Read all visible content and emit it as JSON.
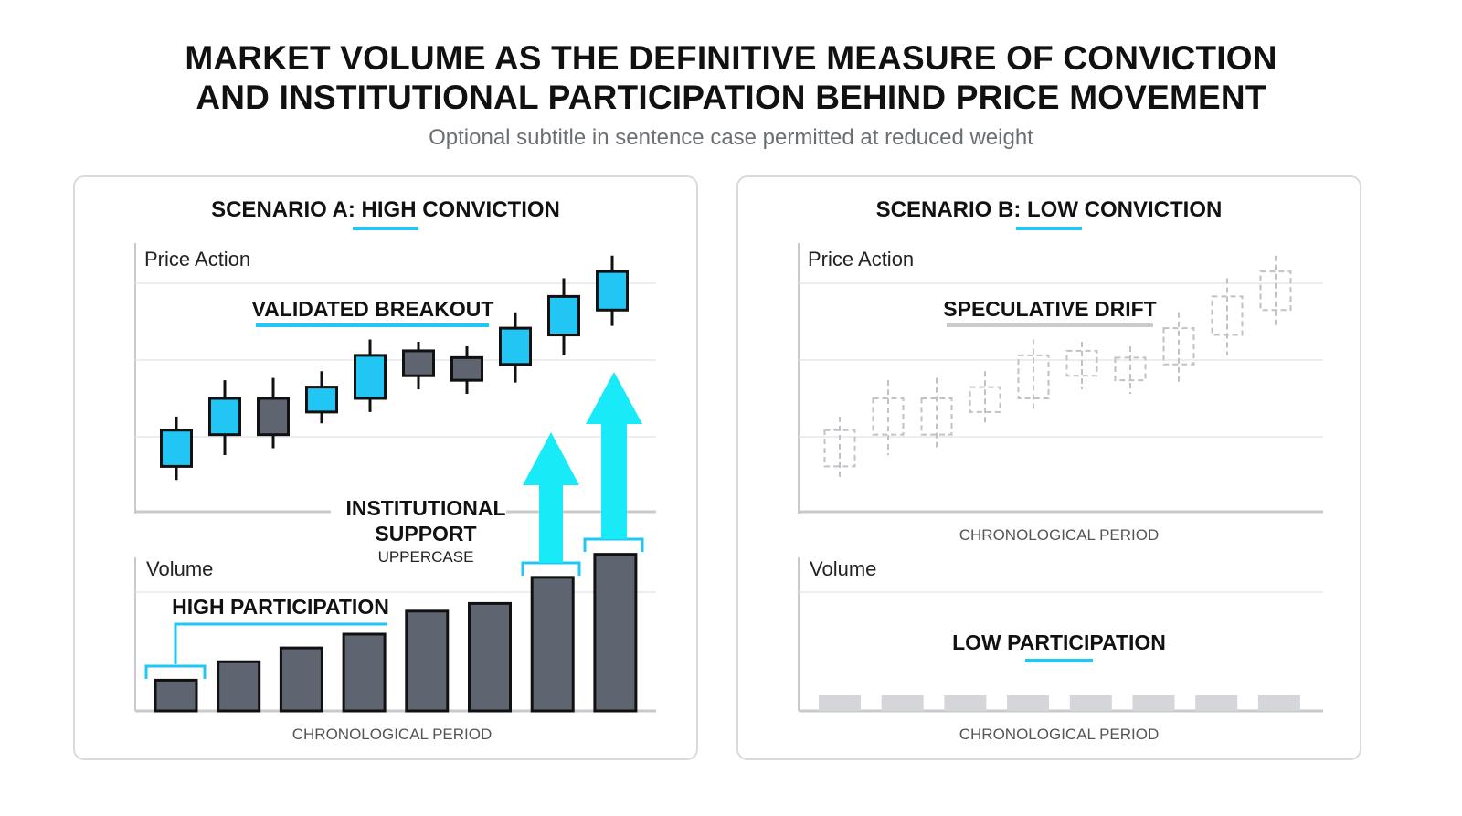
{
  "header": {
    "title_line1": "MARKET VOLUME AS THE DEFINITIVE MEASURE OF CONVICTION",
    "title_line2": "AND INSTITUTIONAL PARTICIPATION BEHIND PRICE MOVEMENT",
    "subtitle": "Optional subtitle in sentence case permitted at reduced weight"
  },
  "colors": {
    "accent": "#21c6f5",
    "arrow": "#18eaf8",
    "bear": "#5f6570",
    "ghost": "#bfc2c7",
    "ghost_volume": "#d4d6da",
    "axis": "#c8cacd",
    "grid": "#e6e7e9"
  },
  "panel_a": {
    "heading": "SCENARIO A: HIGH CONVICTION",
    "price_label": "Price Action",
    "price_annotation": "VALIDATED BREAKOUT",
    "support_line1": "INSTITUTIONAL",
    "support_line2": "SUPPORT",
    "support_line3": "UPPERCASE",
    "volume_label": "Volume",
    "volume_annotation": "HIGH PARTICIPATION",
    "x_label": "CHRONOLOGICAL PERIOD"
  },
  "panel_b": {
    "heading": "SCENARIO B: LOW CONVICTION",
    "price_label": "Price Action",
    "price_annotation": "SPECULATIVE DRIFT",
    "period_label": "CHRONOLOGICAL PERIOD",
    "volume_label": "Volume",
    "volume_annotation": "LOW PARTICIPATION",
    "x_label": "CHRONOLOGICAL PERIOD"
  },
  "chart_data": [
    {
      "type": "candlestick",
      "title": "SCENARIO A: HIGH CONVICTION",
      "ylabel": "Price Action",
      "candles": [
        {
          "open": 2.0,
          "close": 3.6,
          "high": 4.2,
          "low": 1.4,
          "dir": "up"
        },
        {
          "open": 3.4,
          "close": 5.0,
          "high": 5.8,
          "low": 2.5,
          "dir": "up"
        },
        {
          "open": 5.0,
          "close": 3.4,
          "high": 5.9,
          "low": 2.8,
          "dir": "down"
        },
        {
          "open": 4.4,
          "close": 5.5,
          "high": 6.2,
          "low": 3.9,
          "dir": "up"
        },
        {
          "open": 5.0,
          "close": 6.9,
          "high": 7.6,
          "low": 4.4,
          "dir": "up"
        },
        {
          "open": 7.1,
          "close": 6.0,
          "high": 7.5,
          "low": 5.4,
          "dir": "down"
        },
        {
          "open": 6.8,
          "close": 5.8,
          "high": 7.3,
          "low": 5.2,
          "dir": "down"
        },
        {
          "open": 6.5,
          "close": 8.1,
          "high": 8.8,
          "low": 5.7,
          "dir": "up"
        },
        {
          "open": 7.8,
          "close": 9.5,
          "high": 10.3,
          "low": 6.9,
          "dir": "up"
        },
        {
          "open": 8.9,
          "close": 10.6,
          "high": 11.3,
          "low": 8.2,
          "dir": "up"
        }
      ],
      "volume_label": "Volume",
      "volume": [
        2.0,
        3.2,
        4.1,
        5.0,
        6.5,
        7.0,
        8.7,
        10.2
      ],
      "xlabel": "CHRONOLOGICAL PERIOD"
    },
    {
      "type": "candlestick",
      "title": "SCENARIO B: LOW CONVICTION",
      "ylabel": "Price Action",
      "style": "dashed-faded",
      "candles": [
        {
          "open": 2.0,
          "close": 3.6,
          "high": 4.2,
          "low": 1.4
        },
        {
          "open": 3.4,
          "close": 5.0,
          "high": 5.8,
          "low": 2.5
        },
        {
          "open": 3.4,
          "close": 5.0,
          "high": 5.9,
          "low": 2.8
        },
        {
          "open": 4.4,
          "close": 5.5,
          "high": 6.2,
          "low": 3.9
        },
        {
          "open": 5.0,
          "close": 6.9,
          "high": 7.6,
          "low": 4.4
        },
        {
          "open": 6.0,
          "close": 7.1,
          "high": 7.5,
          "low": 5.4
        },
        {
          "open": 5.8,
          "close": 6.8,
          "high": 7.3,
          "low": 5.2
        },
        {
          "open": 6.5,
          "close": 8.1,
          "high": 8.8,
          "low": 5.7
        },
        {
          "open": 7.8,
          "close": 9.5,
          "high": 10.3,
          "low": 6.9
        },
        {
          "open": 8.9,
          "close": 10.6,
          "high": 11.3,
          "low": 8.2
        }
      ],
      "volume_label": "Volume",
      "volume": [
        1.0,
        1.0,
        1.0,
        1.0,
        1.0,
        1.0,
        1.0,
        1.0
      ],
      "xlabel": "CHRONOLOGICAL PERIOD"
    }
  ]
}
